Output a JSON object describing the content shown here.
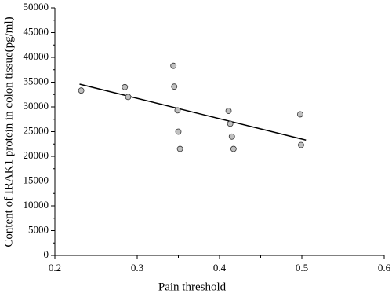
{
  "chart_data": {
    "type": "scatter",
    "xlabel": "Pain threshold",
    "ylabel": "Content of IRAK1 protein in colon tissue(pg/ml)",
    "x": [
      0.232,
      0.285,
      0.289,
      0.344,
      0.345,
      0.349,
      0.35,
      0.352,
      0.411,
      0.413,
      0.415,
      0.417,
      0.498,
      0.499
    ],
    "values": [
      33300,
      34000,
      32000,
      38300,
      34100,
      29300,
      25000,
      21500,
      29200,
      26600,
      24000,
      21500,
      28500,
      22300
    ],
    "color": "#c0c0c0",
    "fit_line": {
      "x": [
        0.23,
        0.505
      ],
      "y": [
        34600,
        23300
      ],
      "color": "#000000"
    },
    "xlim": [
      0.2,
      0.6
    ],
    "xticks": [
      0.2,
      0.3,
      0.4,
      0.5,
      0.6
    ],
    "ylim": [
      0,
      50000
    ],
    "yticks": [
      0,
      5000,
      10000,
      15000,
      20000,
      25000,
      30000,
      35000,
      40000,
      45000,
      50000
    ]
  }
}
